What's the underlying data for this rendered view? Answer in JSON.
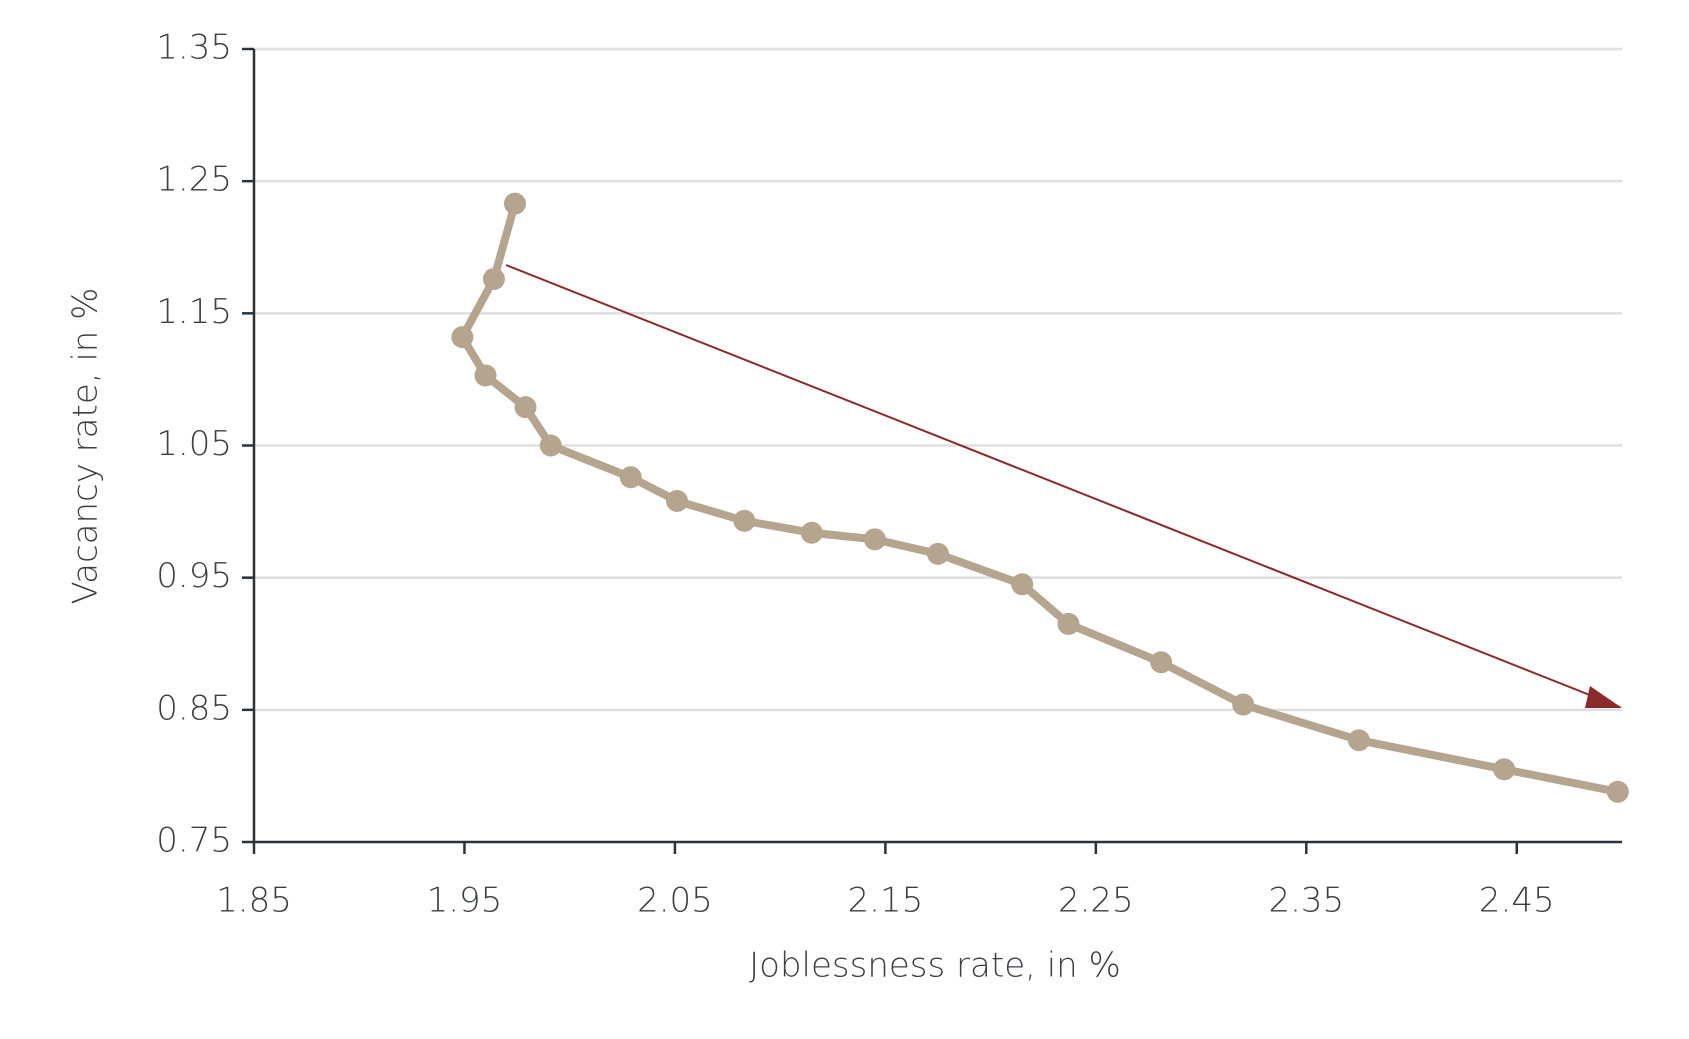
{
  "chart_data": {
    "type": "line",
    "xlabel": "Joblessness rate, in %",
    "ylabel": "Vacancy rate, in %",
    "x": [
      1.974,
      1.964,
      1.949,
      1.96,
      1.979,
      1.991,
      2.029,
      2.051,
      2.083,
      2.115,
      2.145,
      2.175,
      2.215,
      2.237,
      2.281,
      2.32,
      2.375,
      2.444,
      2.498
    ],
    "series": [
      {
        "color": "#b5a48e",
        "values": [
          1.233,
          1.176,
          1.132,
          1.103,
          1.079,
          1.05,
          1.026,
          1.008,
          0.993,
          0.984,
          0.979,
          0.968,
          0.945,
          0.915,
          0.886,
          0.854,
          0.827,
          0.805,
          0.788
        ]
      }
    ],
    "xlim": [
      1.85,
      2.5
    ],
    "xticks": [
      1.85,
      1.95,
      2.05,
      2.15,
      2.25,
      2.35,
      2.45
    ],
    "ylim": [
      0.75,
      1.35
    ],
    "yticks": [
      0.75,
      0.85,
      0.95,
      1.05,
      1.15,
      1.25,
      1.35
    ],
    "grid": true
  }
}
